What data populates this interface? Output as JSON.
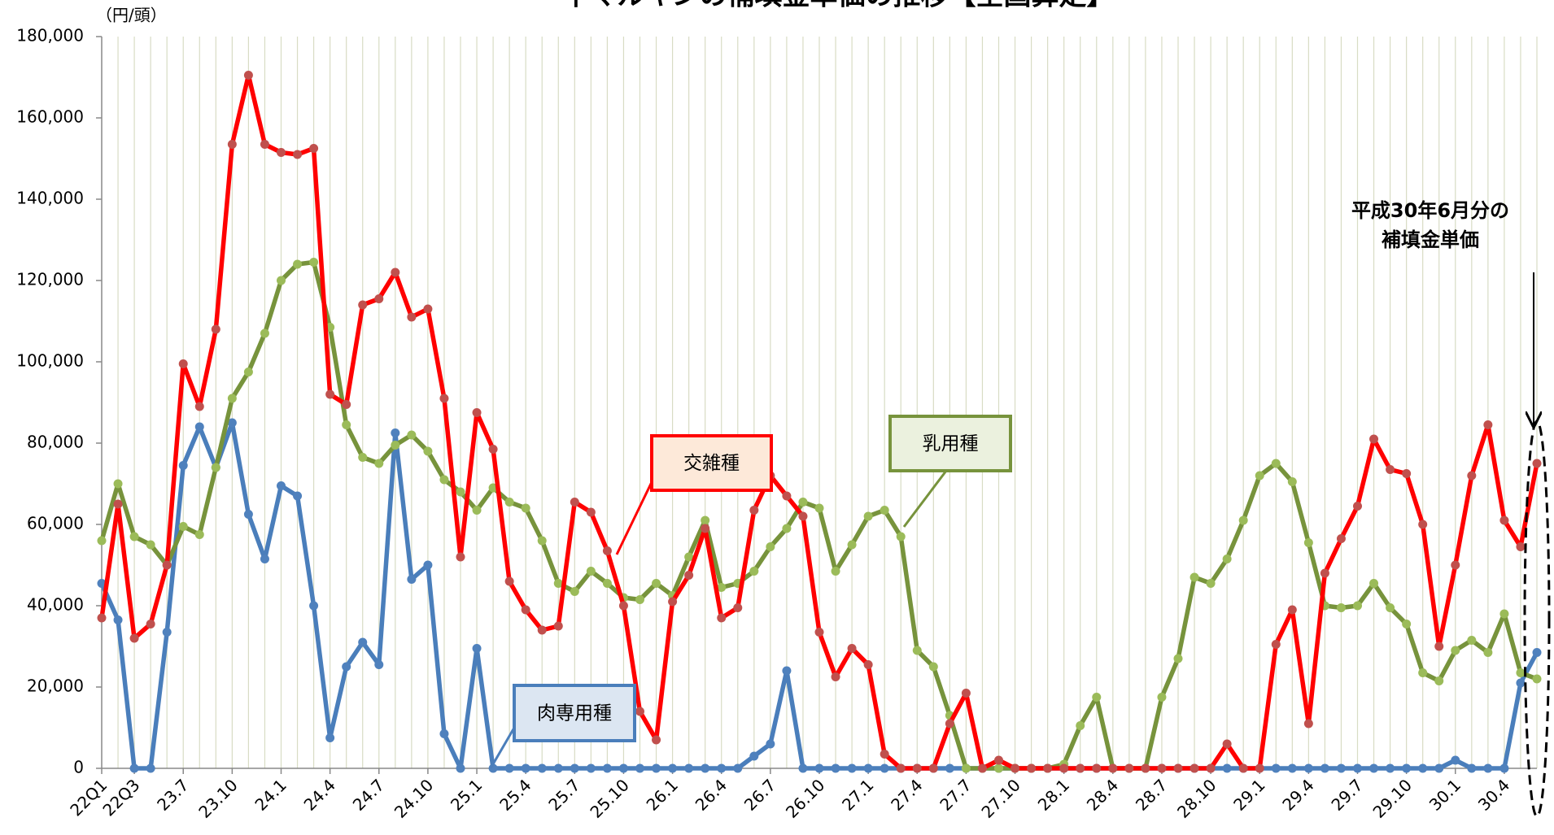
{
  "chart_data": {
    "type": "line",
    "title": "牛マルキンの補填金単価の推移【全国算定】",
    "y_axis_label": "（円/頭）",
    "annotation": [
      "平成30年6月分の",
      "補填金単価"
    ],
    "categories": [
      "22Q1",
      null,
      "22Q3",
      null,
      null,
      "23.7",
      null,
      null,
      "23.10",
      null,
      null,
      "24.1",
      null,
      null,
      "24.4",
      null,
      null,
      "24.7",
      null,
      null,
      "24.10",
      null,
      null,
      "25.1",
      null,
      null,
      "25.4",
      null,
      null,
      "25.7",
      null,
      null,
      "25.10",
      null,
      null,
      "26.1",
      null,
      null,
      "26.4",
      null,
      null,
      "26.7",
      null,
      null,
      "26.10",
      null,
      null,
      "27.1",
      null,
      null,
      "27.4",
      null,
      null,
      "27.7",
      null,
      null,
      "27.10",
      null,
      null,
      "28.1",
      null,
      null,
      "28.4",
      null,
      null,
      "28.7",
      null,
      null,
      "28.10",
      null,
      null,
      "29.1",
      null,
      null,
      "29.4",
      null,
      null,
      "29.7",
      null,
      null,
      "29.10",
      null,
      null,
      "30.1",
      null,
      null,
      "30.4",
      null,
      null
    ],
    "ylim": [
      0,
      180000
    ],
    "yticks": [
      0,
      {
        "value": 20000,
        "label": "20,000"
      },
      {
        "value": 40000,
        "label": "40,000"
      },
      {
        "value": 60000,
        "label": "60,000"
      },
      {
        "value": 80000,
        "label": "80,000"
      },
      {
        "value": 100000,
        "label": "100,000"
      },
      {
        "value": 120000,
        "label": "120,000"
      },
      {
        "value": 140000,
        "label": "140,000"
      },
      {
        "value": 160000,
        "label": "160,000"
      },
      {
        "value": 180000,
        "label": "180,000"
      }
    ],
    "grid": "x",
    "series": [
      {
        "name": "肉専用種",
        "color": "#4a7ebb",
        "marker_color": "#4f81bd",
        "label_fill": "#dce6f2",
        "values": [
          45500,
          36500,
          0,
          0,
          33500,
          74500,
          84000,
          74000,
          85000,
          62500,
          51500,
          69500,
          67000,
          40000,
          7500,
          25000,
          31000,
          25500,
          82500,
          46500,
          50000,
          8500,
          0,
          29500,
          0,
          0,
          0,
          0,
          0,
          0,
          0,
          0,
          0,
          0,
          0,
          0,
          0,
          0,
          0,
          0,
          3000,
          6000,
          24000,
          0,
          0,
          0,
          0,
          0,
          0,
          0,
          0,
          0,
          0,
          0,
          0,
          0,
          0,
          0,
          0,
          0,
          0,
          0,
          0,
          0,
          0,
          0,
          0,
          0,
          0,
          0,
          0,
          0,
          0,
          0,
          0,
          0,
          0,
          0,
          0,
          0,
          0,
          0,
          0,
          2000,
          0,
          0,
          0,
          21000,
          28500
        ]
      },
      {
        "name": "乳用種",
        "color": "#77933c",
        "marker_color": "#9bbb59",
        "label_fill": "#ebf1de",
        "values": [
          56000,
          70000,
          57000,
          55000,
          50000,
          59500,
          57500,
          74000,
          91000,
          97500,
          107000,
          120000,
          124000,
          124500,
          108500,
          84500,
          76500,
          75000,
          79500,
          82000,
          78000,
          71000,
          68000,
          63500,
          69000,
          65500,
          64000,
          56000,
          45500,
          43500,
          48500,
          45500,
          42000,
          41500,
          45500,
          42500,
          52000,
          61000,
          44500,
          45500,
          48500,
          54500,
          59000,
          65500,
          64000,
          48500,
          55000,
          62000,
          63500,
          57000,
          29000,
          25000,
          13000,
          0,
          0,
          0,
          0,
          0,
          0,
          1000,
          10500,
          17500,
          0,
          0,
          0,
          17500,
          27000,
          47000,
          45500,
          51500,
          61000,
          72000,
          75000,
          70500,
          55500,
          40000,
          39500,
          40000,
          45500,
          39500,
          35500,
          23500,
          21500,
          29000,
          31500,
          28500,
          38000,
          23500,
          22000
        ]
      },
      {
        "name": "交雑種",
        "color": "#ff0000",
        "marker_color": "#c0504d",
        "label_fill": "#fde9d9",
        "values": [
          37000,
          65000,
          32000,
          35500,
          50000,
          99500,
          89000,
          108000,
          153500,
          170500,
          153500,
          151500,
          151000,
          152500,
          92000,
          89500,
          114000,
          115500,
          122000,
          111000,
          113000,
          91000,
          52000,
          87500,
          78500,
          46000,
          39000,
          34000,
          35000,
          65500,
          63000,
          53500,
          40000,
          14000,
          7000,
          41000,
          47500,
          59000,
          37000,
          39500,
          63500,
          72000,
          67000,
          62000,
          33500,
          22500,
          29500,
          25500,
          3500,
          0,
          0,
          0,
          11000,
          18500,
          0,
          2000,
          0,
          0,
          0,
          0,
          0,
          0,
          0,
          0,
          0,
          0,
          0,
          0,
          0,
          6000,
          0,
          0,
          30500,
          39000,
          11000,
          48000,
          56500,
          64500,
          81000,
          73500,
          72500,
          60000,
          30000,
          50000,
          72000,
          84500,
          61000,
          54500,
          75000
        ]
      }
    ]
  }
}
